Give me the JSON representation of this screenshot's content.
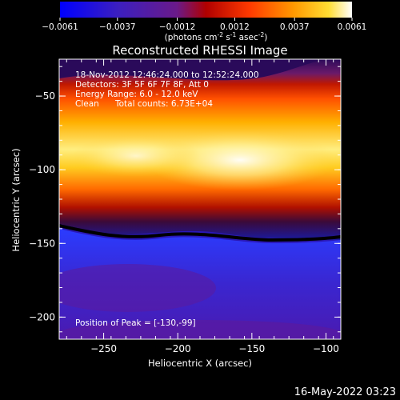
{
  "colorbar": {
    "ticks": [
      "-0.0061",
      "-0.0037",
      "-0.0012",
      "0.0012",
      "0.0037",
      "0.0061"
    ],
    "tick_values": [
      -0.0061,
      -0.0037,
      -0.0012,
      0.0012,
      0.0037,
      0.0061
    ],
    "unit_label": "(photons cm",
    "unit_sup1": "-2",
    "unit_mid1": " s",
    "unit_sup2": "-1",
    "unit_mid2": " asec",
    "unit_sup3": "-2",
    "unit_end": ")",
    "colors": [
      "#0000ff",
      "#3c1fbf",
      "#6a1a8a",
      "#b00000",
      "#ff3a00",
      "#ff9900",
      "#ffdd33",
      "#ffffff"
    ]
  },
  "chart_data": {
    "type": "heatmap",
    "title": "Reconstructed RHESSI Image",
    "xlabel": "Heliocentric X (arcsec)",
    "ylabel": "Heliocentric Y (arcsec)",
    "xlim": [
      -280,
      -90
    ],
    "ylim": [
      -215,
      -25
    ],
    "x_ticks": [
      -250,
      -200,
      -150,
      -100
    ],
    "y_ticks": [
      -50,
      -100,
      -150,
      -200
    ],
    "annotations": {
      "time": "18-Nov-2012 12:46:24.000 to 12:52:24.000",
      "detectors": "Detectors: 3F 5F 6F 7F 8F, Att 0",
      "energy": "Energy Range: 6.0 - 12.0 keV",
      "method": "Clean",
      "counts": "Total counts: 6.73E+04",
      "peak": "Position of Peak = [-130,-99]"
    },
    "peak": [
      -130,
      -99
    ],
    "bright_band": {
      "y_upper_edge": -42,
      "y_lower_edge": -140,
      "peak_y": -99
    },
    "dim_region": {
      "y_from": -150,
      "y_to": -215
    }
  },
  "footer": {
    "timestamp": "16-May-2022 03:23"
  }
}
